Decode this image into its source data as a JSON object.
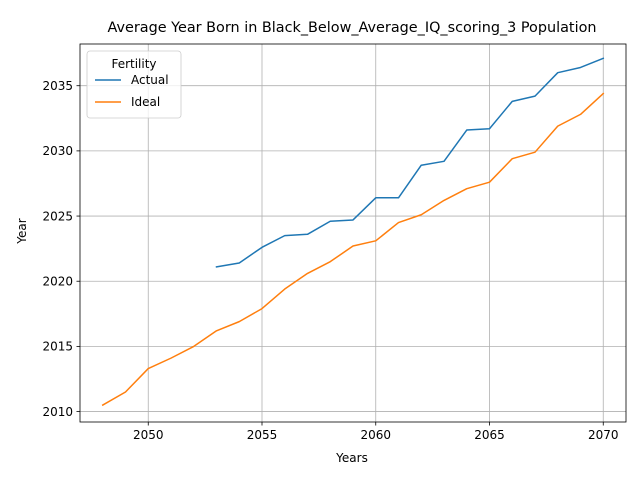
{
  "chart_data": {
    "type": "line",
    "title": "Average Year Born in Black_Below_Average_IQ_scoring_3 Population",
    "xlabel": "Years",
    "ylabel": "Year",
    "xlim": [
      2047,
      2071
    ],
    "ylim": [
      2009.2,
      2038.2
    ],
    "xticks": [
      2050,
      2055,
      2060,
      2065,
      2070
    ],
    "yticks": [
      2010,
      2015,
      2020,
      2025,
      2030,
      2035
    ],
    "grid": true,
    "legend": {
      "title": "Fertility",
      "placement": "top-left"
    },
    "series": [
      {
        "name": "Actual",
        "color": "#1f77b4",
        "x": [
          2053,
          2054,
          2055,
          2056,
          2057,
          2058,
          2059,
          2060,
          2061,
          2062,
          2063,
          2064,
          2065,
          2066,
          2067,
          2068,
          2069,
          2070
        ],
        "values": [
          2021.1,
          2021.4,
          2022.6,
          2023.5,
          2023.6,
          2024.6,
          2024.7,
          2026.4,
          2026.4,
          2028.9,
          2029.2,
          2031.6,
          2031.7,
          2033.8,
          2034.2,
          2036.0,
          2036.4,
          2037.1
        ]
      },
      {
        "name": "Ideal",
        "color": "#ff7f0e",
        "x": [
          2048,
          2049,
          2050,
          2051,
          2052,
          2053,
          2054,
          2055,
          2056,
          2057,
          2058,
          2059,
          2060,
          2061,
          2062,
          2063,
          2064,
          2065,
          2066,
          2067,
          2068,
          2069,
          2070
        ],
        "values": [
          2010.5,
          2011.5,
          2013.3,
          2014.1,
          2015.0,
          2016.2,
          2016.9,
          2017.9,
          2019.4,
          2020.6,
          2021.5,
          2022.7,
          2023.1,
          2024.5,
          2025.1,
          2026.2,
          2027.1,
          2027.6,
          2029.4,
          2029.9,
          2031.9,
          2032.8,
          2034.4
        ]
      }
    ]
  }
}
